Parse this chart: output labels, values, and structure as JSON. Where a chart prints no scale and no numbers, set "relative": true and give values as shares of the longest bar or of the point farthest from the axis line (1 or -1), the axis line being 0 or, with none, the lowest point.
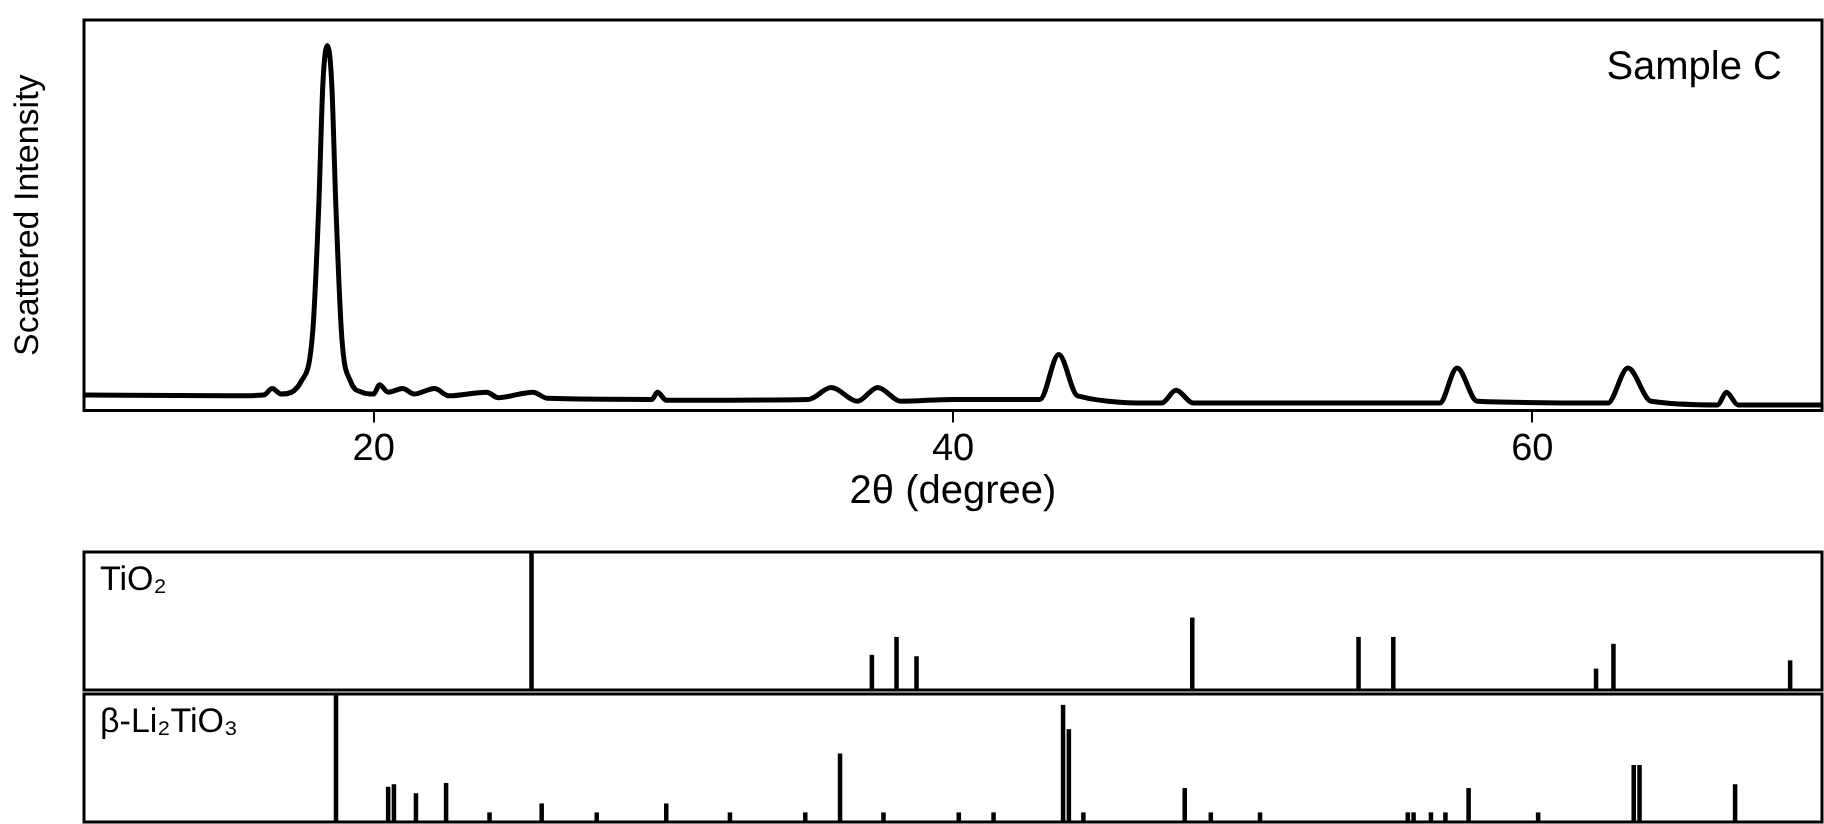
{
  "chart_data": [
    {
      "type": "line",
      "xlabel": "2θ (degree)",
      "ylabel": "Scattered Intensity",
      "annotations": [
        "Sample C"
      ],
      "relative": true,
      "xlim": [
        10,
        70
      ],
      "xticks": [
        20,
        40,
        60
      ],
      "tick_labels": "x",
      "grid": false,
      "legend": false,
      "marker": "none",
      "series": [
        {
          "color": "#000000",
          "x": [
            10,
            15,
            16.2,
            16.5,
            16.8,
            17.5,
            17.9,
            18.1,
            18.25,
            18.4,
            18.55,
            18.7,
            18.9,
            19.2,
            19.6,
            20.0,
            20.2,
            20.5,
            21.0,
            21.4,
            22.1,
            22.6,
            23.9,
            24.3,
            25.5,
            26,
            29.6,
            29.8,
            30.1,
            35,
            35.8,
            36.7,
            37.4,
            38.2,
            40,
            43,
            43.65,
            44.3,
            47.2,
            47.7,
            48.3,
            56.8,
            57.4,
            58.1,
            62.6,
            63.3,
            64.1,
            66.4,
            66.7,
            67.1,
            70
          ],
          "values": [
            0.042,
            0.04,
            0.042,
            0.06,
            0.045,
            0.08,
            0.22,
            0.55,
            0.9,
            1.0,
            0.9,
            0.55,
            0.2,
            0.08,
            0.05,
            0.045,
            0.07,
            0.05,
            0.06,
            0.045,
            0.06,
            0.04,
            0.05,
            0.035,
            0.05,
            0.033,
            0.03,
            0.05,
            0.028,
            0.03,
            0.063,
            0.025,
            0.063,
            0.025,
            0.03,
            0.03,
            0.153,
            0.04,
            0.02,
            0.055,
            0.02,
            0.02,
            0.116,
            0.025,
            0.02,
            0.116,
            0.025,
            0.015,
            0.05,
            0.015,
            0.015
          ]
        }
      ]
    },
    {
      "type": "bar",
      "annotations": [
        "TiO₂"
      ],
      "relative": true,
      "xlim": [
        10,
        70
      ],
      "tick_labels": false,
      "grid": false,
      "legend": false,
      "series": [
        {
          "color": "#000000",
          "x": [
            25.45,
            37.2,
            38.05,
            38.74,
            48.26,
            54.0,
            55.2,
            62.2,
            62.8,
            68.9
          ],
          "values": [
            1.0,
            0.25,
            0.38,
            0.24,
            0.52,
            0.38,
            0.38,
            0.15,
            0.33,
            0.21
          ]
        }
      ]
    },
    {
      "type": "bar",
      "annotations": [
        "β-Li₂TiO₃"
      ],
      "relative": true,
      "xlim": [
        10,
        70
      ],
      "tick_labels": false,
      "grid": false,
      "legend": false,
      "series": [
        {
          "color": "#000000",
          "x": [
            18.7,
            20.5,
            20.7,
            21.46,
            22.5,
            24.0,
            25.8,
            27.7,
            30.1,
            32.3,
            34.9,
            36.1,
            37.6,
            40.2,
            41.4,
            43.8,
            44.0,
            44.5,
            48.0,
            48.9,
            50.6,
            55.7,
            55.9,
            56.5,
            57.0,
            57.8,
            60.2,
            63.5,
            63.7,
            67.0
          ],
          "values": [
            1.0,
            0.27,
            0.29,
            0.22,
            0.3,
            0.07,
            0.14,
            0.07,
            0.14,
            0.07,
            0.07,
            0.53,
            0.07,
            0.07,
            0.07,
            0.91,
            0.72,
            0.07,
            0.26,
            0.07,
            0.07,
            0.07,
            0.07,
            0.07,
            0.07,
            0.26,
            0.07,
            0.44,
            0.44,
            0.29
          ]
        }
      ]
    }
  ]
}
